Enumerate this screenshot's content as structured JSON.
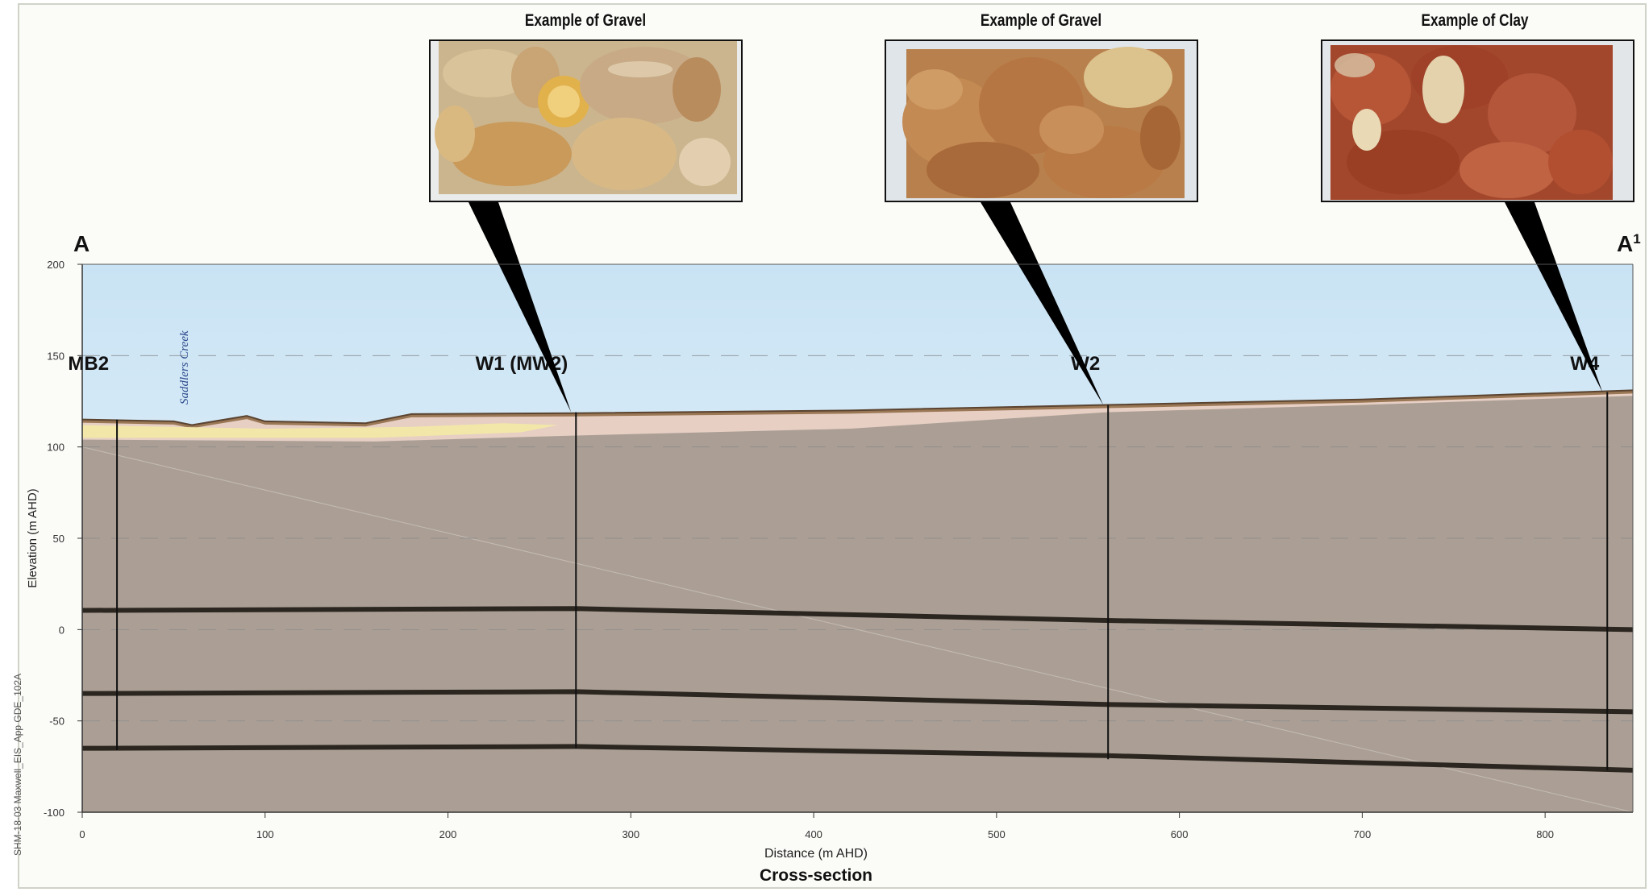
{
  "figure": {
    "caption": "Cross-section",
    "side_code": "SHM-18-03 Maxwell_EIS_App GDE_102A",
    "section_start_label": "A",
    "section_end_label": "A",
    "section_end_superscript": "1",
    "creek_label": "Saddlers Creek"
  },
  "photos": [
    {
      "title": "Example of Gravel",
      "material": "gravel",
      "connects_to": "W1 (MW2)"
    },
    {
      "title": "Example of Gravel",
      "material": "gravel-weathered",
      "connects_to": "W2"
    },
    {
      "title": "Example of Clay",
      "material": "clay",
      "connects_to": "W4"
    }
  ],
  "colors": {
    "sky_top": "#c9e3f4",
    "sky_bottom": "#eef6fb",
    "bedrock": "#ab9f95",
    "topsoil": "#9a7755",
    "alluvium_yellow": "#f2e7a9",
    "alluvium_pink": "#e7cfc4",
    "seam_line": "#2b2620",
    "well_line": "#111111"
  },
  "chart_data": {
    "type": "cross-section",
    "xlabel": "Distance (m  AHD)",
    "ylabel": "Elevation (m AHD)",
    "xlim": [
      0,
      848
    ],
    "ylim": [
      -100,
      200
    ],
    "xticks": [
      0,
      100,
      200,
      300,
      400,
      500,
      600,
      700,
      800
    ],
    "yticks": [
      200,
      150,
      100,
      50,
      0,
      -50,
      -100
    ],
    "dashed_gridlines_at": [
      150,
      100,
      50,
      0,
      -50
    ],
    "ground_surface": [
      [
        0,
        115
      ],
      [
        50,
        114
      ],
      [
        60,
        112
      ],
      [
        90,
        117
      ],
      [
        100,
        114
      ],
      [
        155,
        113
      ],
      [
        170,
        116
      ],
      [
        180,
        118
      ],
      [
        270,
        118.5
      ],
      [
        420,
        120
      ],
      [
        560,
        123
      ],
      [
        700,
        126
      ],
      [
        848,
        131
      ]
    ],
    "seams": [
      {
        "points": [
          [
            0,
            10.5
          ],
          [
            270,
            11.5
          ],
          [
            560,
            5
          ],
          [
            848,
            0
          ]
        ]
      },
      {
        "points": [
          [
            0,
            -35
          ],
          [
            270,
            -34
          ],
          [
            560,
            -41
          ],
          [
            848,
            -45
          ]
        ]
      },
      {
        "points": [
          [
            0,
            -65
          ],
          [
            270,
            -64
          ],
          [
            560,
            -69
          ],
          [
            848,
            -77
          ]
        ]
      }
    ],
    "wells": [
      {
        "name": "MB2",
        "x": 19,
        "top": 115,
        "bottom": -66
      },
      {
        "name": "W1 (MW2)",
        "x": 270,
        "top": 119,
        "bottom": -65
      },
      {
        "name": "W2",
        "x": 561,
        "top": 123,
        "bottom": -71
      },
      {
        "name": "W4",
        "x": 834,
        "top": 130,
        "bottom": -77
      }
    ]
  }
}
